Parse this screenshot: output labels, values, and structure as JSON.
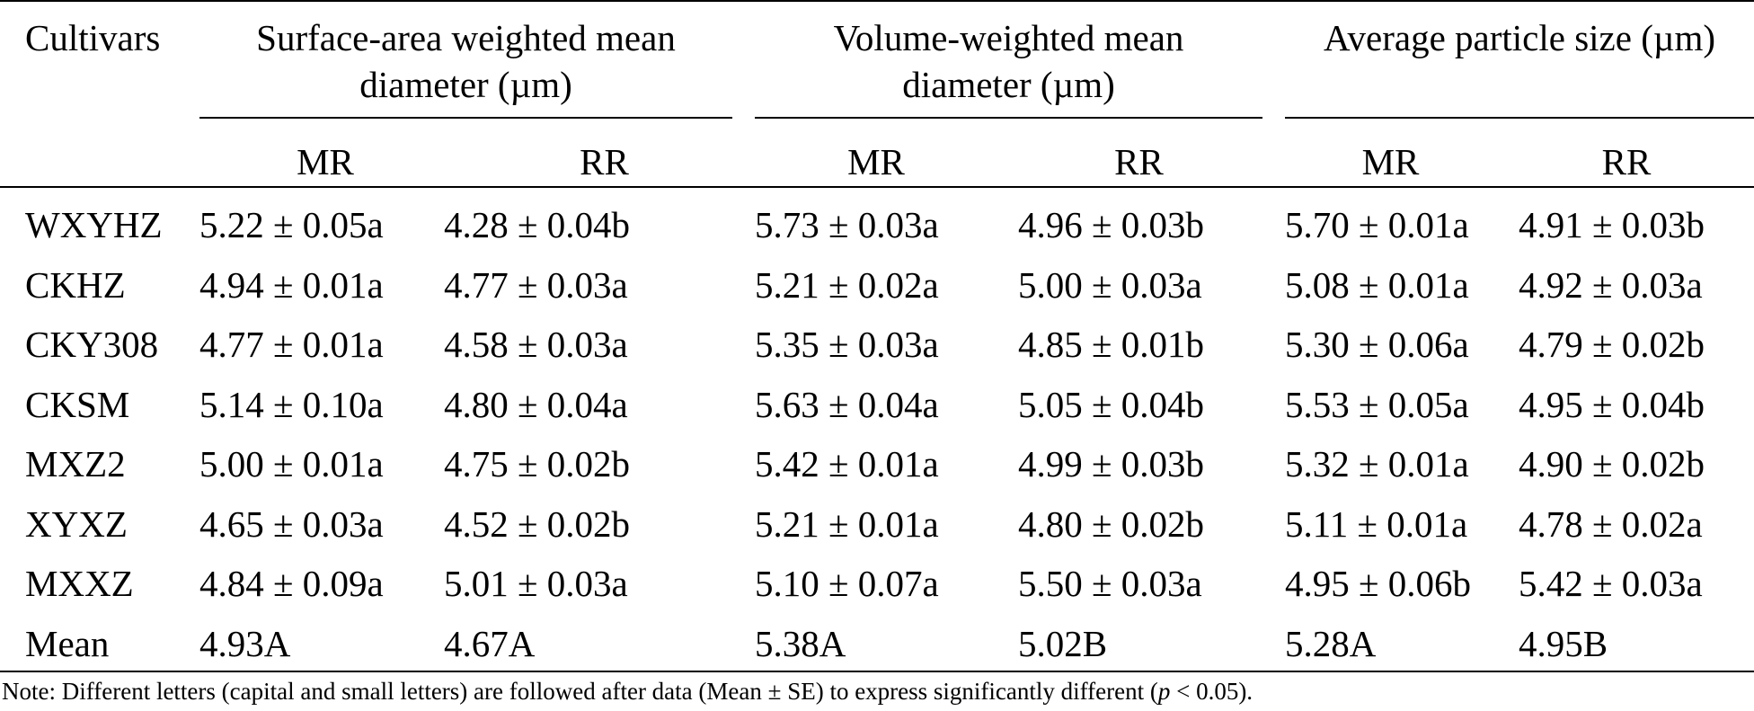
{
  "table": {
    "headers": {
      "cultivars": "Cultivars",
      "group1": [
        "Surface-area weighted mean",
        "diameter (µm)"
      ],
      "group2": [
        "Volume-weighted mean",
        "diameter (µm)"
      ],
      "group3": [
        "Average particle size (µm)"
      ],
      "sub": [
        "MR",
        "RR",
        "MR",
        "RR",
        "MR",
        "RR"
      ]
    },
    "rows": [
      {
        "name": "WXYHZ",
        "cells": [
          "5.22 ± 0.05a",
          "4.28 ± 0.04b",
          "5.73 ± 0.03a",
          "4.96 ± 0.03b",
          "5.70 ± 0.01a",
          "4.91 ± 0.03b"
        ]
      },
      {
        "name": "CKHZ",
        "cells": [
          "4.94 ± 0.01a",
          "4.77 ± 0.03a",
          "5.21 ± 0.02a",
          "5.00 ± 0.03a",
          "5.08 ± 0.01a",
          "4.92 ± 0.03a"
        ]
      },
      {
        "name": "CKY308",
        "cells": [
          "4.77 ± 0.01a",
          "4.58 ± 0.03a",
          "5.35 ± 0.03a",
          "4.85 ± 0.01b",
          "5.30 ± 0.06a",
          "4.79 ± 0.02b"
        ]
      },
      {
        "name": "CKSM",
        "cells": [
          "5.14 ± 0.10a",
          "4.80 ± 0.04a",
          "5.63 ± 0.04a",
          "5.05 ± 0.04b",
          "5.53 ± 0.05a",
          "4.95 ± 0.04b"
        ]
      },
      {
        "name": "MXZ2",
        "cells": [
          "5.00 ± 0.01a",
          "4.75 ± 0.02b",
          "5.42 ± 0.01a",
          "4.99 ± 0.03b",
          "5.32 ± 0.01a",
          "4.90 ± 0.02b"
        ]
      },
      {
        "name": "XYXZ",
        "cells": [
          "4.65 ± 0.03a",
          "4.52 ± 0.02b",
          "5.21 ± 0.01a",
          "4.80 ± 0.02b",
          "5.11 ± 0.01a",
          "4.78 ± 0.02a"
        ]
      },
      {
        "name": "MXXZ",
        "cells": [
          "4.84 ± 0.09a",
          "5.01 ± 0.03a",
          "5.10 ± 0.07a",
          "5.50 ± 0.03a",
          "4.95 ± 0.06b",
          "5.42 ± 0.03a"
        ]
      },
      {
        "name": "Mean",
        "cells": [
          "4.93A",
          "4.67A",
          "5.38A",
          "5.02B",
          "5.28A",
          "4.95B"
        ]
      }
    ]
  },
  "note": {
    "before": "Note: Different letters (capital and small letters) are followed after data (Mean ± SE) to express significantly different (",
    "italic": "p",
    "after": " < 0.05)."
  }
}
